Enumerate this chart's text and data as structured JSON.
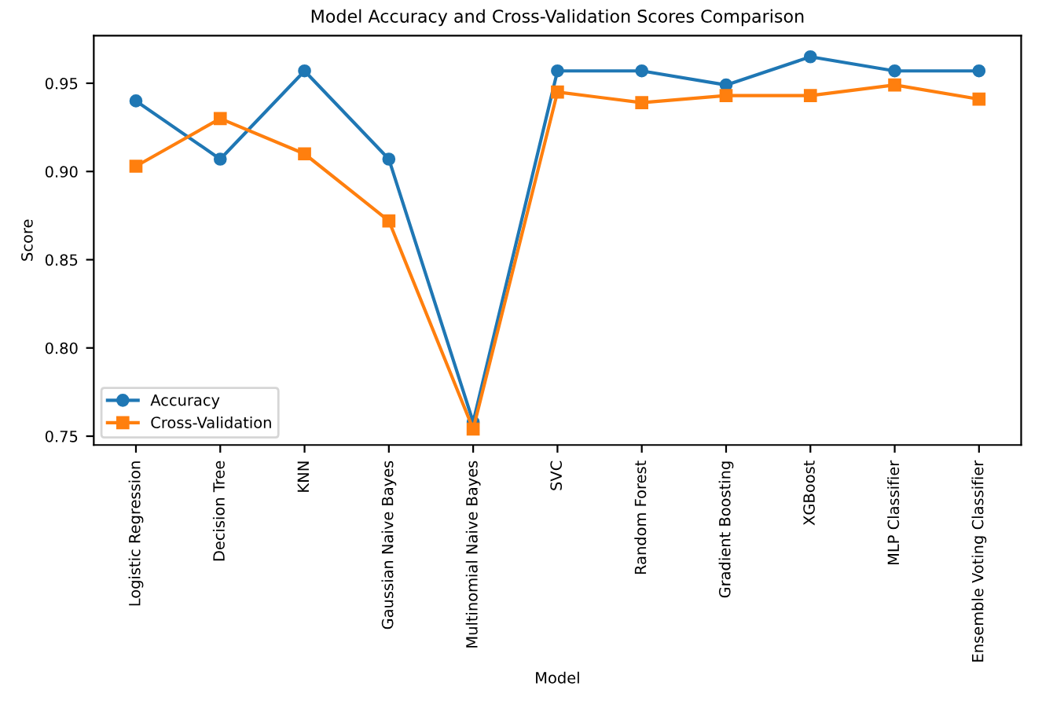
{
  "chart_data": {
    "type": "line",
    "title": "Model Accuracy and Cross-Validation Scores Comparison",
    "xlabel": "Model",
    "ylabel": "Score",
    "categories": [
      "Logistic Regression",
      "Decision Tree",
      "KNN",
      "Gaussian Naive Bayes",
      "Multinomial Naive Bayes",
      "SVC",
      "Random Forest",
      "Gradient Boosting",
      "XGBoost",
      "MLP Classifier",
      "Ensemble Voting Classifier"
    ],
    "series": [
      {
        "name": "Accuracy",
        "color": "#1f77b4",
        "marker": "circle",
        "values": [
          0.94,
          0.907,
          0.957,
          0.907,
          0.758,
          0.957,
          0.957,
          0.949,
          0.965,
          0.957,
          0.957
        ]
      },
      {
        "name": "Cross-Validation",
        "color": "#ff7f0e",
        "marker": "square",
        "values": [
          0.903,
          0.93,
          0.91,
          0.872,
          0.754,
          0.945,
          0.939,
          0.943,
          0.943,
          0.949,
          0.941
        ]
      }
    ],
    "ylim": [
      0.745,
      0.977
    ],
    "yticks": [
      0.75,
      {
        "value": 0.8,
        "label": "0.80"
      },
      0.85,
      {
        "value": 0.9,
        "label": "0.90"
      },
      0.95
    ],
    "grid": false,
    "legend": "bottom left"
  }
}
